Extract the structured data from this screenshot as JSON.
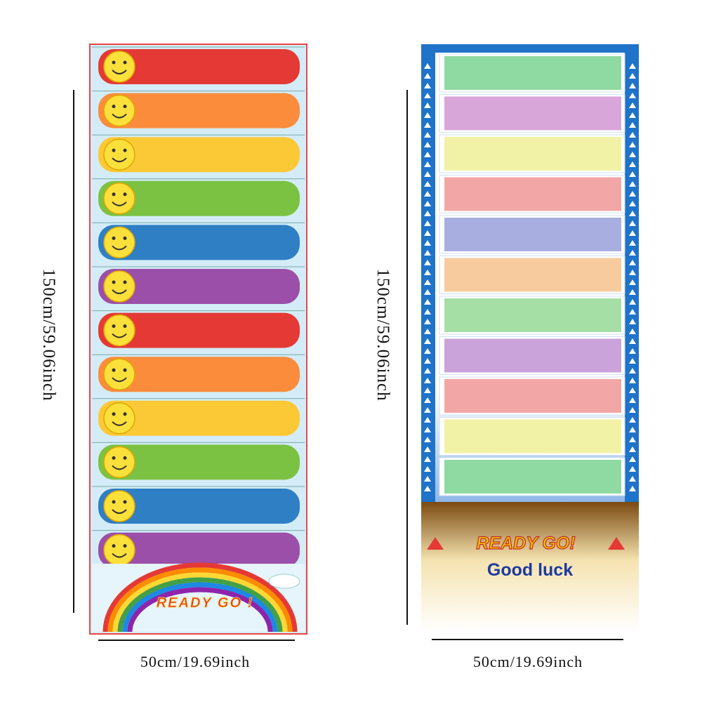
{
  "left_mat": {
    "height_label": "150cm/59.06inch",
    "width_label": "50cm/19.69inch",
    "banner": "READY GO !"
  },
  "right_mat": {
    "height_label": "150cm/59.06inch",
    "width_label": "50cm/19.69inch",
    "banner": "READY GO!",
    "slogan": "Good luck"
  }
}
